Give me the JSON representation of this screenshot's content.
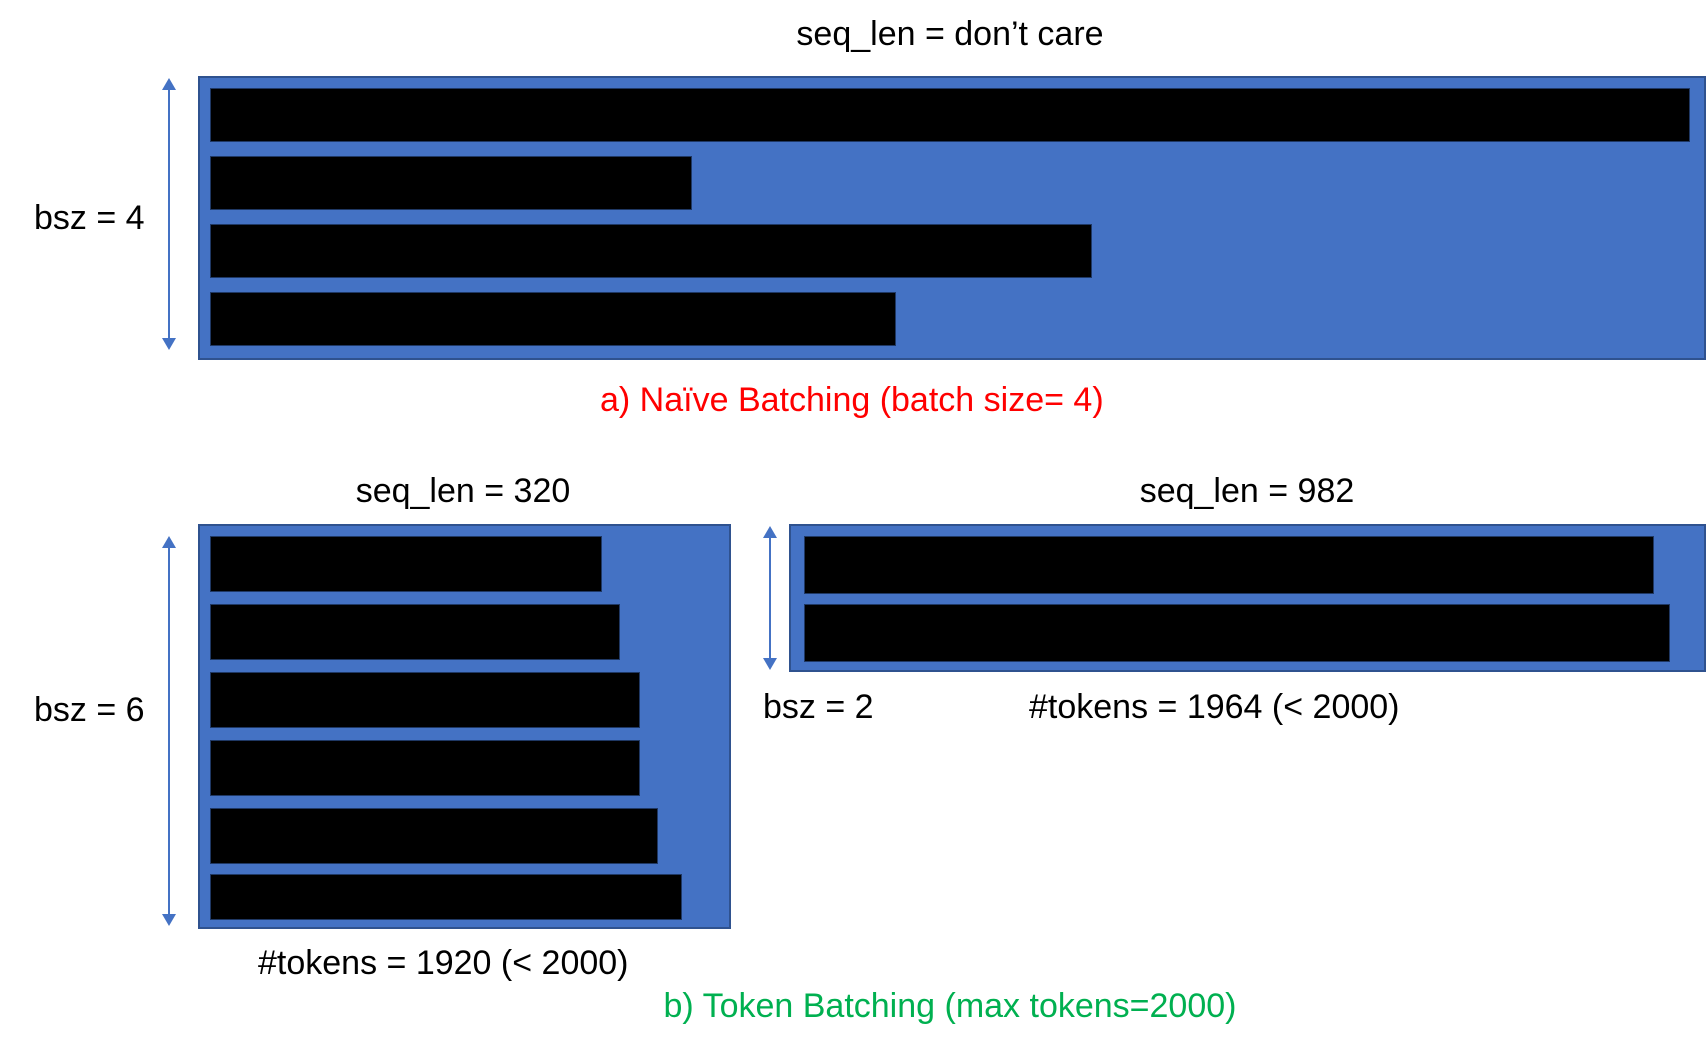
{
  "naive": {
    "seq_len_label": "seq_len = don’t care",
    "bsz_label": "bsz = 4",
    "caption": "a) Naïve Batching (batch size= 4)",
    "caption_color": "#FF0000"
  },
  "token": {
    "left": {
      "seq_len_label": "seq_len = 320",
      "bsz_label": "bsz = 6",
      "tokens_label": "#tokens = 1920 (< 2000)"
    },
    "right": {
      "seq_len_label": "seq_len = 982",
      "bsz_label": "bsz = 2",
      "tokens_label": "#tokens = 1964 (< 2000)"
    },
    "caption": "b) Token Batching (max tokens=2000)",
    "caption_color": "#00B050"
  },
  "colors": {
    "panel": "#4472C4",
    "sequence": "#000000",
    "arrow": "#4472C4"
  },
  "icons": [
    "double-arrow-icon"
  ]
}
